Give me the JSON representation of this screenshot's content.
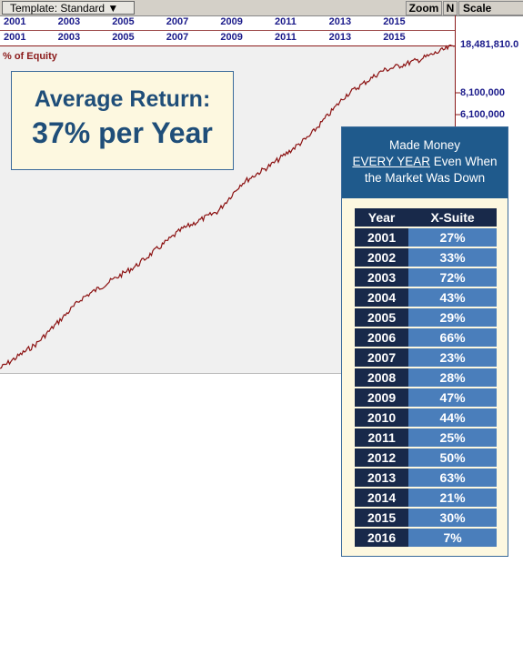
{
  "toolbar": {
    "template": "Template: Standard",
    "zoom": "Zoom",
    "n": "N",
    "scale": "Scale"
  },
  "years_top": [
    "2001",
    "2003",
    "2005",
    "2007",
    "2009",
    "2011",
    "2013",
    "2015"
  ],
  "years_bottom": [
    "2001",
    "2003",
    "2005",
    "2007",
    "2009",
    "2011",
    "2013",
    "2015"
  ],
  "price_labels": [
    "18,481,810.0",
    "8,100,000",
    "6,100,000"
  ],
  "axis_label": "% of Equity",
  "callout": {
    "line1": "Average Return:",
    "line2": "37% per Year"
  },
  "panel": {
    "heading1": "Made Money",
    "heading2a": "EVERY YEAR",
    "heading2b": " Even When",
    "heading3": "the Market Was Down",
    "table": {
      "header": [
        "Year",
        "X-Suite"
      ],
      "rows": [
        [
          "2001",
          "27%"
        ],
        [
          "2002",
          "33%"
        ],
        [
          "2003",
          "72%"
        ],
        [
          "2004",
          "43%"
        ],
        [
          "2005",
          "29%"
        ],
        [
          "2006",
          "66%"
        ],
        [
          "2007",
          "23%"
        ],
        [
          "2008",
          "28%"
        ],
        [
          "2009",
          "47%"
        ],
        [
          "2010",
          "44%"
        ],
        [
          "2011",
          "25%"
        ],
        [
          "2012",
          "50%"
        ],
        [
          "2013",
          "63%"
        ],
        [
          "2014",
          "21%"
        ],
        [
          "2015",
          "30%"
        ],
        [
          "2016",
          "7%"
        ]
      ]
    }
  }
}
